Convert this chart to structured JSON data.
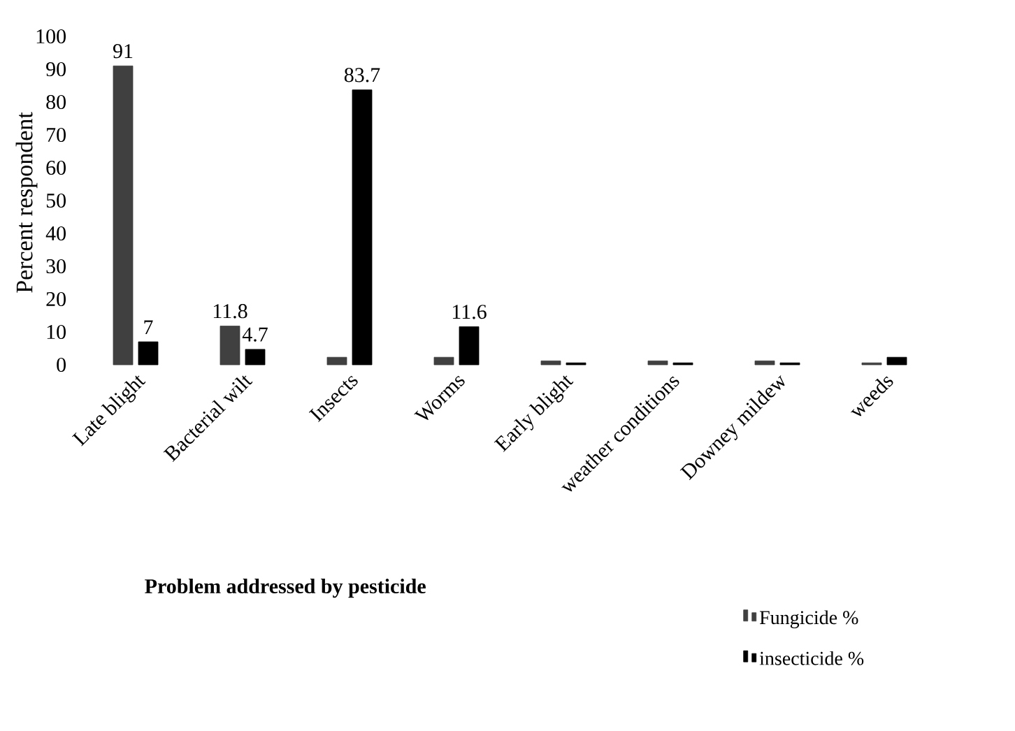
{
  "chart_data": {
    "type": "bar",
    "xlabel": "Problem addressed by pesticide",
    "ylabel": "Percent respondent",
    "categories": [
      "Late blight",
      "Bacterial wilt",
      "Insects",
      "Worms",
      "Early blight",
      "weather conditions",
      "Downey mildew",
      "weeds"
    ],
    "series": [
      {
        "name": "Fungicide %",
        "color": "#404040",
        "values": [
          91,
          11.8,
          2.3,
          2.3,
          1.2,
          1.2,
          1.2,
          0.6
        ],
        "value_labels": [
          "91",
          "11.8",
          null,
          null,
          null,
          null,
          null,
          null
        ]
      },
      {
        "name": "insecticide %",
        "color": "#000000",
        "values": [
          7,
          4.7,
          83.7,
          11.6,
          0.6,
          0.6,
          0.6,
          2.3
        ],
        "value_labels": [
          "7",
          "4.7",
          "83.7",
          "11.6",
          null,
          null,
          null,
          null
        ]
      }
    ],
    "ylim": [
      0,
      100
    ],
    "yticks": [
      0,
      10,
      20,
      30,
      40,
      50,
      60,
      70,
      80,
      90,
      100
    ],
    "legend": "bottom right"
  }
}
